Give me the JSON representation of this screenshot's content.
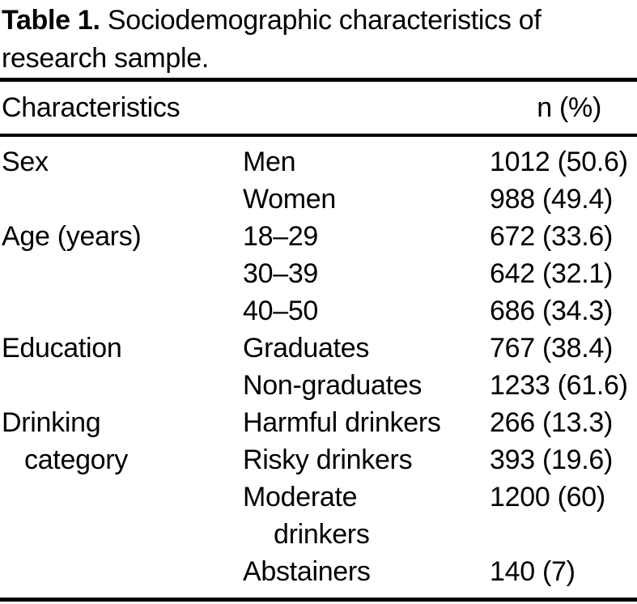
{
  "page": {
    "background_color": "#ffffff",
    "text_color": "#000000"
  },
  "title": {
    "label": "Table 1.",
    "text": " Sociodemographic characteristics of research sample."
  },
  "table": {
    "header": {
      "col_characteristics": "Characteristics",
      "col_n_pct": "n (%)"
    },
    "rows": [
      {
        "c1": "Sex",
        "c2": "Men",
        "c3": "1012 (50.6)"
      },
      {
        "c1": "",
        "c2": "Women",
        "c3": "988 (49.4)"
      },
      {
        "c1": "Age (years)",
        "c2": "18–29",
        "c3": "672 (33.6)"
      },
      {
        "c1": "",
        "c2": "30–39",
        "c3": "642 (32.1)"
      },
      {
        "c1": "",
        "c2": "40–50",
        "c3": "686 (34.3)"
      },
      {
        "c1": "Education",
        "c2": "Graduates",
        "c3": "767 (38.4)"
      },
      {
        "c1": "",
        "c2": "Non-graduates",
        "c3": "1233 (61.6)"
      },
      {
        "c1": "Drinking",
        "c2": "Harmful drinkers",
        "c3": "266 (13.3)"
      },
      {
        "c1": "category",
        "c2": "Risky drinkers",
        "c3": "393 (19.6)"
      },
      {
        "c1": "",
        "c2": "Moderate",
        "c3": "1200 (60)"
      },
      {
        "c1": "",
        "c2": "drinkers",
        "c3": ""
      },
      {
        "c1": "",
        "c2": "Abstainers",
        "c3": "140 (7)"
      }
    ]
  }
}
